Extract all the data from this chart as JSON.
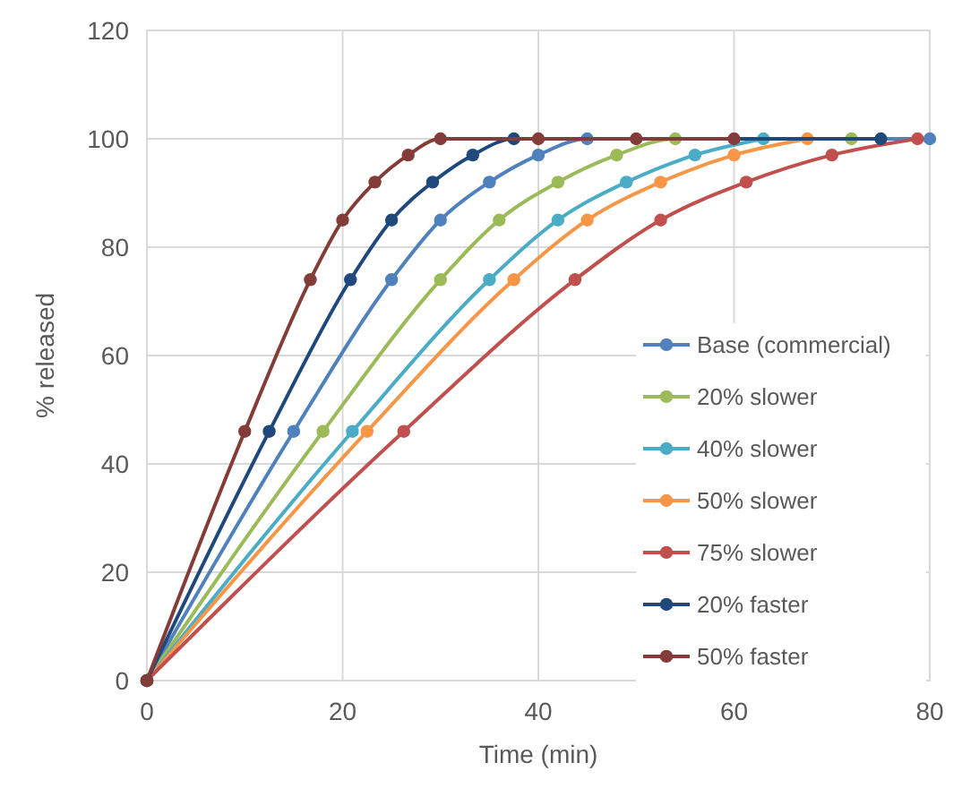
{
  "chart_data": {
    "type": "line",
    "xlabel": "Time (min)",
    "ylabel": "% released",
    "xlim": [
      0,
      80
    ],
    "xticks": [
      0,
      20,
      40,
      60,
      80
    ],
    "ylim": [
      0,
      120
    ],
    "yticks": [
      0,
      20,
      40,
      60,
      80,
      100,
      120
    ],
    "grid": true,
    "legend": "right",
    "marker": "circle",
    "line_style": "solid",
    "series": [
      {
        "name": "Base (commercial)",
        "color": "#4f81bd",
        "x": [
          0,
          15,
          25,
          30,
          35,
          40,
          45,
          80
        ],
        "values": [
          0,
          46,
          74,
          85,
          92,
          97,
          100,
          100
        ]
      },
      {
        "name": "20% slower",
        "color": "#9bbb59",
        "x": [
          0,
          18,
          30,
          36,
          42,
          48,
          54,
          72
        ],
        "values": [
          0,
          46,
          74,
          85,
          92,
          97,
          100,
          100
        ]
      },
      {
        "name": "40% slower",
        "color": "#4bacc6",
        "x": [
          0,
          21,
          35,
          42,
          49,
          56,
          63
        ],
        "values": [
          0,
          46,
          74,
          85,
          92,
          97,
          100
        ]
      },
      {
        "name": "50% slower",
        "color": "#f79646",
        "x": [
          0,
          22.5,
          37.5,
          45,
          52.5,
          60,
          67.5
        ],
        "values": [
          0,
          46,
          74,
          85,
          92,
          97,
          100
        ]
      },
      {
        "name": "75% slower",
        "color": "#c0504d",
        "x": [
          0,
          26.25,
          43.75,
          52.5,
          61.25,
          70,
          78.75
        ],
        "values": [
          0,
          46,
          74,
          85,
          92,
          97,
          100
        ]
      },
      {
        "name": "20% faster",
        "color": "#1f497d",
        "x": [
          0,
          12.5,
          20.8,
          25,
          29.2,
          33.3,
          37.5,
          75
        ],
        "values": [
          0,
          46,
          74,
          85,
          92,
          97,
          100,
          100
        ]
      },
      {
        "name": "50% faster",
        "color": "#843c39",
        "x": [
          0,
          10,
          16.7,
          20,
          23.3,
          26.7,
          30,
          40,
          50,
          60
        ],
        "values": [
          0,
          46,
          74,
          85,
          92,
          97,
          100,
          100,
          100,
          100
        ]
      }
    ]
  }
}
